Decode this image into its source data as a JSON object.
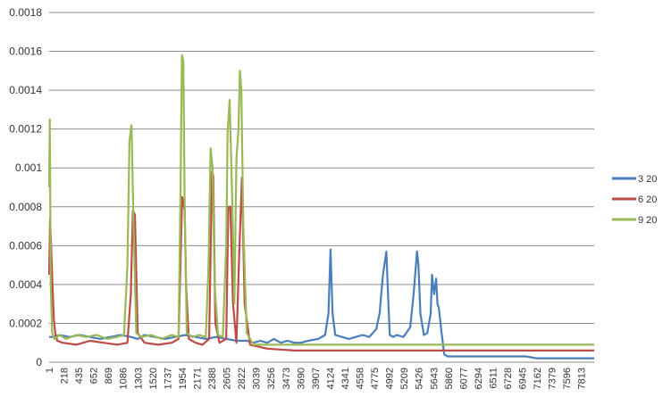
{
  "chart_data": {
    "type": "line",
    "title": "",
    "xlabel": "",
    "ylabel": "",
    "ylim": [
      0,
      0.0018
    ],
    "yticks": [
      "0",
      "0.0002",
      "0.0004",
      "0.0006",
      "0.0008",
      "0.001",
      "0.0012",
      "0.0014",
      "0.0016",
      "0.0018"
    ],
    "xlim": [
      1,
      8000
    ],
    "xticks": [
      "1",
      "218",
      "435",
      "652",
      "869",
      "1086",
      "1303",
      "1520",
      "1737",
      "1954",
      "2171",
      "2388",
      "2605",
      "2822",
      "3039",
      "3256",
      "3473",
      "3690",
      "3907",
      "4124",
      "4341",
      "4558",
      "4775",
      "4992",
      "5209",
      "5426",
      "5643",
      "5860",
      "6077",
      "6294",
      "6511",
      "6728",
      "6945",
      "7162",
      "7379",
      "7596",
      "7813"
    ],
    "grid": true,
    "legend_position": "right",
    "series": [
      {
        "name": "3 20",
        "color": "#4a7ebb",
        "x": [
          1,
          60,
          150,
          300,
          450,
          600,
          750,
          900,
          1050,
          1200,
          1300,
          1400,
          1550,
          1700,
          1850,
          2000,
          2150,
          2300,
          2450,
          2600,
          2750,
          2900,
          3000,
          3100,
          3200,
          3300,
          3400,
          3500,
          3600,
          3700,
          3800,
          3950,
          4050,
          4100,
          4130,
          4160,
          4200,
          4300,
          4400,
          4500,
          4600,
          4700,
          4800,
          4850,
          4900,
          4950,
          4980,
          5000,
          5050,
          5100,
          5200,
          5300,
          5350,
          5400,
          5420,
          5450,
          5500,
          5550,
          5600,
          5620,
          5650,
          5680,
          5700,
          5720,
          5760,
          5800,
          5850,
          6100,
          6600,
          7000,
          7150,
          7300,
          7600,
          8000
        ],
        "y": [
          0.00013,
          0.00013,
          0.00014,
          0.00013,
          0.00014,
          0.00013,
          0.00012,
          0.00013,
          0.00014,
          0.00013,
          0.00012,
          0.00014,
          0.00013,
          0.00012,
          0.00013,
          0.00014,
          0.00013,
          0.00012,
          0.00013,
          0.00012,
          0.00011,
          0.00011,
          0.0001,
          0.00011,
          0.0001,
          0.00012,
          0.0001,
          0.00011,
          0.0001,
          0.0001,
          0.00011,
          0.00012,
          0.00014,
          0.00025,
          0.00058,
          0.00025,
          0.00014,
          0.00013,
          0.00012,
          0.00013,
          0.00014,
          0.00013,
          0.00017,
          0.00025,
          0.00045,
          0.00057,
          0.0003,
          0.00014,
          0.00013,
          0.00014,
          0.00013,
          0.00018,
          0.00035,
          0.00057,
          0.0005,
          0.00025,
          0.00014,
          0.00015,
          0.00025,
          0.00045,
          0.00035,
          0.00043,
          0.0003,
          0.00028,
          0.00015,
          4e-05,
          3e-05,
          3e-05,
          3e-05,
          3e-05,
          2e-05,
          2e-05,
          2e-05,
          2e-05
        ]
      },
      {
        "name": "6 20",
        "color": "#be4b48",
        "x": [
          1,
          15,
          30,
          50,
          70,
          90,
          120,
          200,
          400,
          600,
          800,
          1000,
          1150,
          1200,
          1230,
          1260,
          1300,
          1400,
          1600,
          1800,
          1900,
          1954,
          1990,
          2010,
          2050,
          2150,
          2250,
          2350,
          2390,
          2410,
          2440,
          2500,
          2600,
          2630,
          2660,
          2700,
          2750,
          2790,
          2830,
          2870,
          2950,
          3200,
          3600,
          4000,
          4500,
          5000,
          5500,
          5800,
          6100,
          6500,
          7000,
          7500,
          8000
        ],
        "y": [
          0.00045,
          0.00074,
          0.0006,
          0.0004,
          0.00022,
          0.00015,
          0.00011,
          0.0001,
          9e-05,
          0.00011,
          0.0001,
          9e-05,
          0.0001,
          0.00035,
          0.00078,
          0.00076,
          0.00015,
          0.0001,
          9e-05,
          0.0001,
          0.00012,
          0.00085,
          0.00078,
          0.0004,
          0.00012,
          0.0001,
          9e-05,
          0.00012,
          0.00098,
          0.00096,
          0.0002,
          0.0001,
          0.00012,
          0.0008,
          0.0008,
          0.0003,
          0.0001,
          0.00055,
          0.00095,
          0.0003,
          9e-05,
          7e-05,
          6e-05,
          6e-05,
          6e-05,
          6e-05,
          6e-05,
          6e-05,
          6e-05,
          6e-05,
          6e-05,
          6e-05,
          6e-05
        ]
      },
      {
        "name": "9 20",
        "color": "#98b954",
        "x": [
          1,
          10,
          25,
          45,
          80,
          150,
          250,
          400,
          550,
          700,
          850,
          1000,
          1100,
          1150,
          1180,
          1210,
          1240,
          1280,
          1350,
          1500,
          1650,
          1800,
          1900,
          1930,
          1950,
          1970,
          1990,
          2020,
          2100,
          2200,
          2300,
          2340,
          2370,
          2400,
          2430,
          2480,
          2550,
          2600,
          2620,
          2650,
          2690,
          2720,
          2750,
          2780,
          2800,
          2822,
          2850,
          2900,
          3000,
          3300,
          3700,
          4200,
          4700,
          5200,
          5700,
          6200,
          6700,
          7200,
          7700,
          8000
        ],
        "y": [
          0.0009,
          0.00125,
          0.0004,
          0.00015,
          0.00012,
          0.00014,
          0.00012,
          0.00014,
          0.00013,
          0.00014,
          0.00012,
          0.00013,
          0.00014,
          0.0005,
          0.00114,
          0.00122,
          0.0007,
          0.00015,
          0.00013,
          0.00014,
          0.00012,
          0.00014,
          0.00013,
          0.0009,
          0.00158,
          0.00155,
          0.0008,
          0.00015,
          0.00013,
          0.00014,
          0.00013,
          0.0005,
          0.0011,
          0.001,
          0.0004,
          0.00014,
          0.00013,
          0.0006,
          0.00118,
          0.00135,
          0.0008,
          0.0003,
          0.00105,
          0.0012,
          0.0015,
          0.0014,
          0.0007,
          0.00015,
          9e-05,
          9e-05,
          9e-05,
          9e-05,
          9e-05,
          9e-05,
          9e-05,
          9e-05,
          9e-05,
          9e-05,
          9e-05,
          9e-05
        ]
      }
    ]
  }
}
